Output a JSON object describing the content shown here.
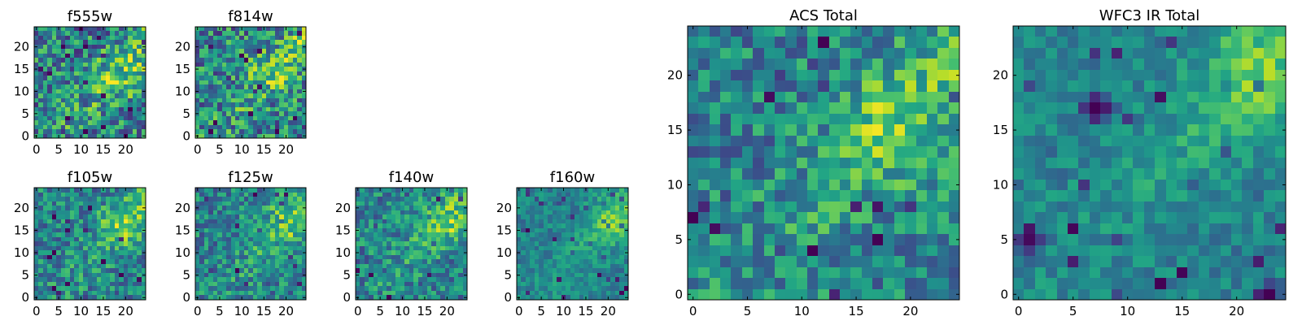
{
  "chart_data": [
    {
      "type": "heatmap",
      "title": "f555w",
      "colormap": "viridis",
      "pixel_grid": [
        25,
        25
      ],
      "xlim": [
        -0.5,
        24.5
      ],
      "ylim": [
        -0.5,
        24.5
      ],
      "xticks": [
        0,
        5,
        10,
        15,
        20
      ],
      "yticks": [
        0,
        5,
        10,
        15,
        20
      ],
      "xticklabels": [
        "0",
        "5",
        "10",
        "15",
        "20"
      ],
      "yticklabels": [
        "0",
        "5",
        "10",
        "15",
        "20"
      ],
      "bright_region": {
        "x": 18,
        "y": 13
      },
      "noise": "high"
    },
    {
      "type": "heatmap",
      "title": "f814w",
      "colormap": "viridis",
      "pixel_grid": [
        25,
        25
      ],
      "xlim": [
        -0.5,
        24.5
      ],
      "ylim": [
        -0.5,
        24.5
      ],
      "xticks": [
        0,
        5,
        10,
        15,
        20
      ],
      "yticks": [
        0,
        5,
        10,
        15,
        20
      ],
      "xticklabels": [
        "0",
        "5",
        "10",
        "15",
        "20"
      ],
      "yticklabels": [
        "0",
        "5",
        "10",
        "15",
        "20"
      ],
      "bright_region": {
        "x": 17,
        "y": 14
      },
      "noise": "high"
    },
    {
      "type": "heatmap",
      "title": "f105w",
      "colormap": "viridis",
      "pixel_grid": [
        25,
        25
      ],
      "xlim": [
        -0.5,
        24.5
      ],
      "ylim": [
        -0.5,
        24.5
      ],
      "xticks": [
        0,
        5,
        10,
        15,
        20
      ],
      "yticks": [
        0,
        5,
        10,
        15,
        20
      ],
      "xticklabels": [
        "0",
        "5",
        "10",
        "15",
        "20"
      ],
      "yticklabels": [
        "0",
        "5",
        "10",
        "15",
        "20"
      ],
      "bright_region": {
        "x": 19,
        "y": 16
      },
      "noise": "medium"
    },
    {
      "type": "heatmap",
      "title": "f125w",
      "colormap": "viridis",
      "pixel_grid": [
        25,
        25
      ],
      "xlim": [
        -0.5,
        24.5
      ],
      "ylim": [
        -0.5,
        24.5
      ],
      "xticks": [
        0,
        5,
        10,
        15,
        20
      ],
      "yticks": [
        0,
        5,
        10,
        15,
        20
      ],
      "xticklabels": [
        "0",
        "5",
        "10",
        "15",
        "20"
      ],
      "yticklabels": [
        "0",
        "5",
        "10",
        "15",
        "20"
      ],
      "bright_region": {
        "x": 21,
        "y": 17
      },
      "noise": "medium"
    },
    {
      "type": "heatmap",
      "title": "f140w",
      "colormap": "viridis",
      "pixel_grid": [
        25,
        25
      ],
      "xlim": [
        -0.5,
        24.5
      ],
      "ylim": [
        -0.5,
        24.5
      ],
      "xticks": [
        0,
        5,
        10,
        15,
        20
      ],
      "yticks": [
        0,
        5,
        10,
        15,
        20
      ],
      "xticklabels": [
        "0",
        "5",
        "10",
        "15",
        "20"
      ],
      "yticklabels": [
        "0",
        "5",
        "10",
        "15",
        "20"
      ],
      "bright_region": {
        "x": 20,
        "y": 17
      },
      "noise": "medium"
    },
    {
      "type": "heatmap",
      "title": "f160w",
      "colormap": "viridis",
      "pixel_grid": [
        25,
        25
      ],
      "xlim": [
        -0.5,
        24.5
      ],
      "ylim": [
        -0.5,
        24.5
      ],
      "xticks": [
        0,
        5,
        10,
        15,
        20
      ],
      "yticks": [
        0,
        5,
        10,
        15,
        20
      ],
      "xticklabels": [
        "0",
        "5",
        "10",
        "15",
        "20"
      ],
      "yticklabels": [
        "0",
        "5",
        "10",
        "15",
        "20"
      ],
      "bright_region": {
        "x": 21,
        "y": 17
      },
      "noise": "low"
    },
    {
      "type": "heatmap",
      "title": "ACS Total",
      "colormap": "viridis",
      "pixel_grid": [
        25,
        25
      ],
      "xlim": [
        -0.5,
        24.5
      ],
      "ylim": [
        -0.5,
        24.5
      ],
      "xticks": [
        0,
        5,
        10,
        15,
        20
      ],
      "yticks": [
        0,
        5,
        10,
        15,
        20
      ],
      "xticklabels": [
        "0",
        "5",
        "10",
        "15",
        "20"
      ],
      "yticklabels": [
        "0",
        "5",
        "10",
        "15",
        "20"
      ],
      "bright_region": {
        "x": 18,
        "y": 15
      },
      "noise": "medium"
    },
    {
      "type": "heatmap",
      "title": "WFC3 IR Total",
      "colormap": "viridis",
      "pixel_grid": [
        25,
        25
      ],
      "xlim": [
        -0.5,
        24.5
      ],
      "ylim": [
        -0.5,
        24.5
      ],
      "xticks": [
        0,
        5,
        10,
        15,
        20
      ],
      "yticks": [
        0,
        5,
        10,
        15,
        20
      ],
      "xticklabels": [
        "0",
        "5",
        "10",
        "15",
        "20"
      ],
      "yticklabels": [
        "0",
        "5",
        "10",
        "15",
        "20"
      ],
      "bright_region": {
        "x": 22,
        "y": 20
      },
      "noise": "low",
      "dark_spots": [
        {
          "x": 7,
          "y": 17
        },
        {
          "x": 1,
          "y": 5
        },
        {
          "x": 23,
          "y": 0
        }
      ]
    }
  ]
}
